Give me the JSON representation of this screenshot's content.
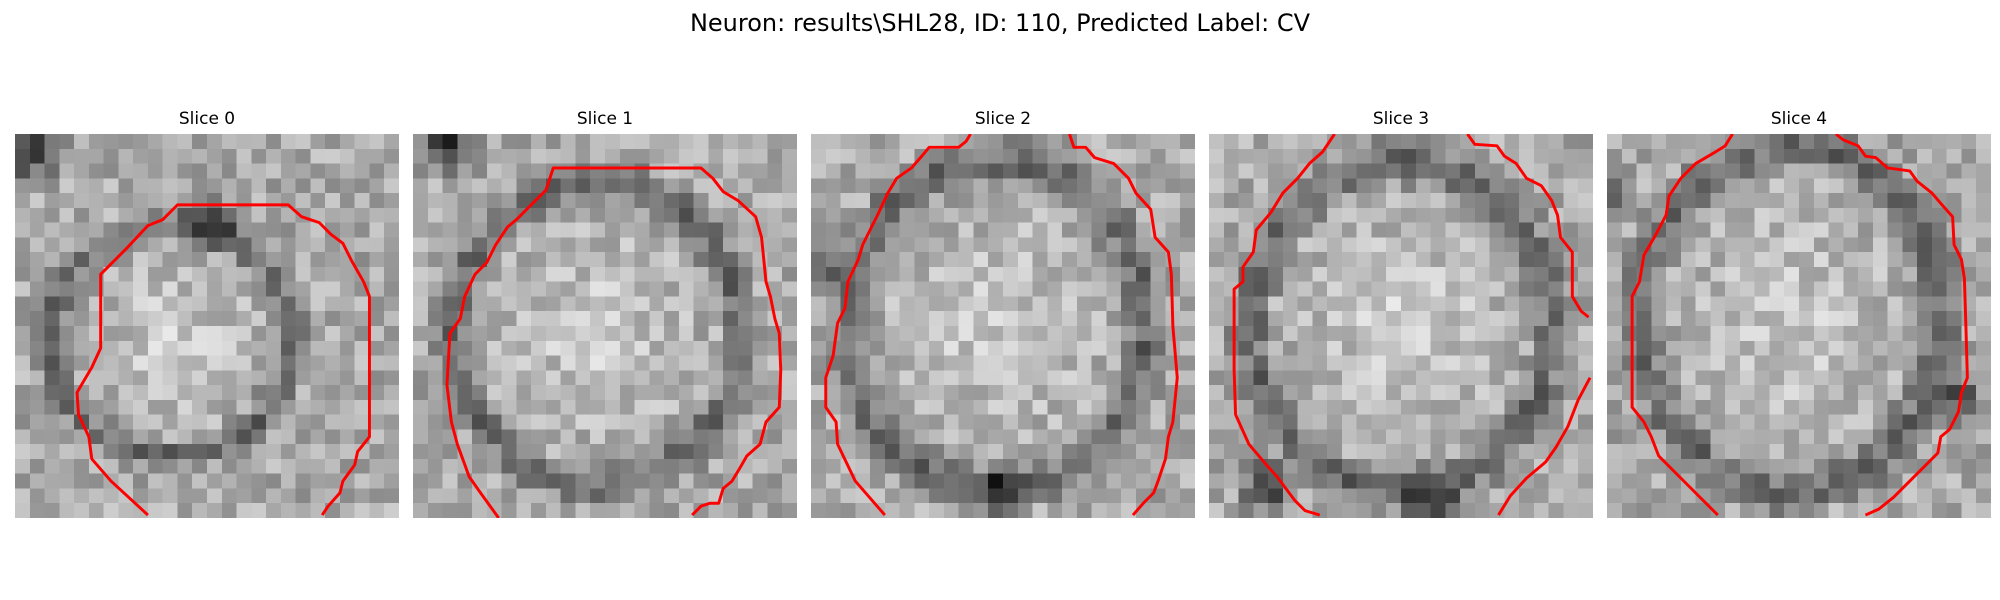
{
  "figure": {
    "title": "Neuron: results\\SHL28, ID: 110, Predicted Label: CV",
    "contour_color": "#ff0000",
    "panels": [
      {
        "title": "Slice 0"
      },
      {
        "title": "Slice 1"
      },
      {
        "title": "Slice 2"
      },
      {
        "title": "Slice 3"
      },
      {
        "title": "Slice 4"
      }
    ]
  }
}
